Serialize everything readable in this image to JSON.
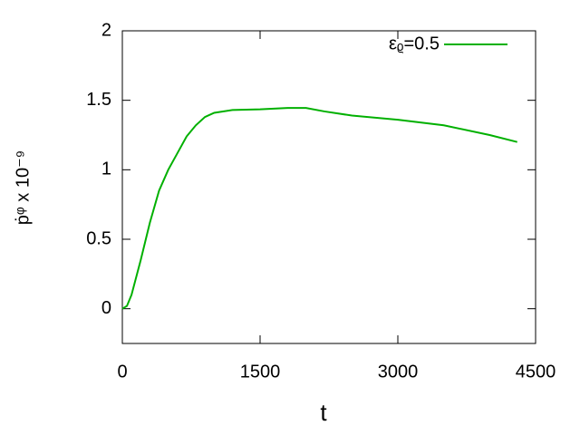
{
  "chart_data": {
    "type": "line",
    "x_label": "t",
    "y_label": "ṗᵠ x 10⁻⁹",
    "x": [
      0,
      50,
      100,
      200,
      300,
      400,
      500,
      600,
      700,
      800,
      900,
      1000,
      1200,
      1500,
      1800,
      2000,
      2200,
      2500,
      3000,
      3500,
      4000,
      4300
    ],
    "series": [
      {
        "name": "εᵨ=0.5",
        "color": "#00b000",
        "values": [
          0,
          0.02,
          0.1,
          0.35,
          0.62,
          0.85,
          1.0,
          1.12,
          1.24,
          1.32,
          1.38,
          1.41,
          1.43,
          1.435,
          1.445,
          1.445,
          1.42,
          1.39,
          1.36,
          1.32,
          1.25,
          1.2
        ]
      }
    ],
    "xlim": [
      0,
      4500
    ],
    "xticks": [
      0,
      1500,
      3000,
      4500
    ],
    "ylim": [
      -0.25,
      2
    ],
    "yticks": [
      0,
      0.5,
      1,
      1.5,
      2
    ],
    "legend": "top-right"
  }
}
